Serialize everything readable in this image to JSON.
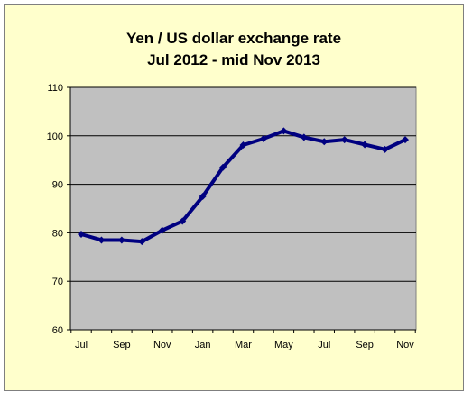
{
  "chart_data": {
    "type": "line",
    "title": "Yen / US dollar exchange rate",
    "subtitle": "Jul 2012 - mid Nov 2013",
    "xlabel": "",
    "ylabel": "",
    "ylim": [
      60,
      110
    ],
    "yticks": [
      "110",
      "100",
      "90",
      "80",
      "70",
      "60"
    ],
    "xtick_labels": [
      "Jul",
      "Sep",
      "Nov",
      "Jan",
      "Mar",
      "May",
      "Jul",
      "Sep",
      "Nov"
    ],
    "grid": true,
    "legend": "none",
    "series": [
      {
        "color": "#000080",
        "x": [
          "Jul 2012",
          "Aug 2012",
          "Sep 2012",
          "Oct 2012",
          "Nov 2012",
          "Dec 2012",
          "Jan 2013",
          "Feb 2013",
          "Mar 2013",
          "Apr 2013",
          "May 2013",
          "Jun 2013",
          "Jul 2013",
          "Aug 2013",
          "Sep 2013",
          "Oct 2013",
          "Nov 2013"
        ],
        "values": [
          79.7,
          78.5,
          78.5,
          78.2,
          80.5,
          82.4,
          87.5,
          93.5,
          98.1,
          99.4,
          101.0,
          99.7,
          98.8,
          99.2,
          98.2,
          97.2,
          99.2
        ]
      }
    ],
    "plot_background": "#c0c0c0",
    "chart_background": "#ffffcc"
  }
}
